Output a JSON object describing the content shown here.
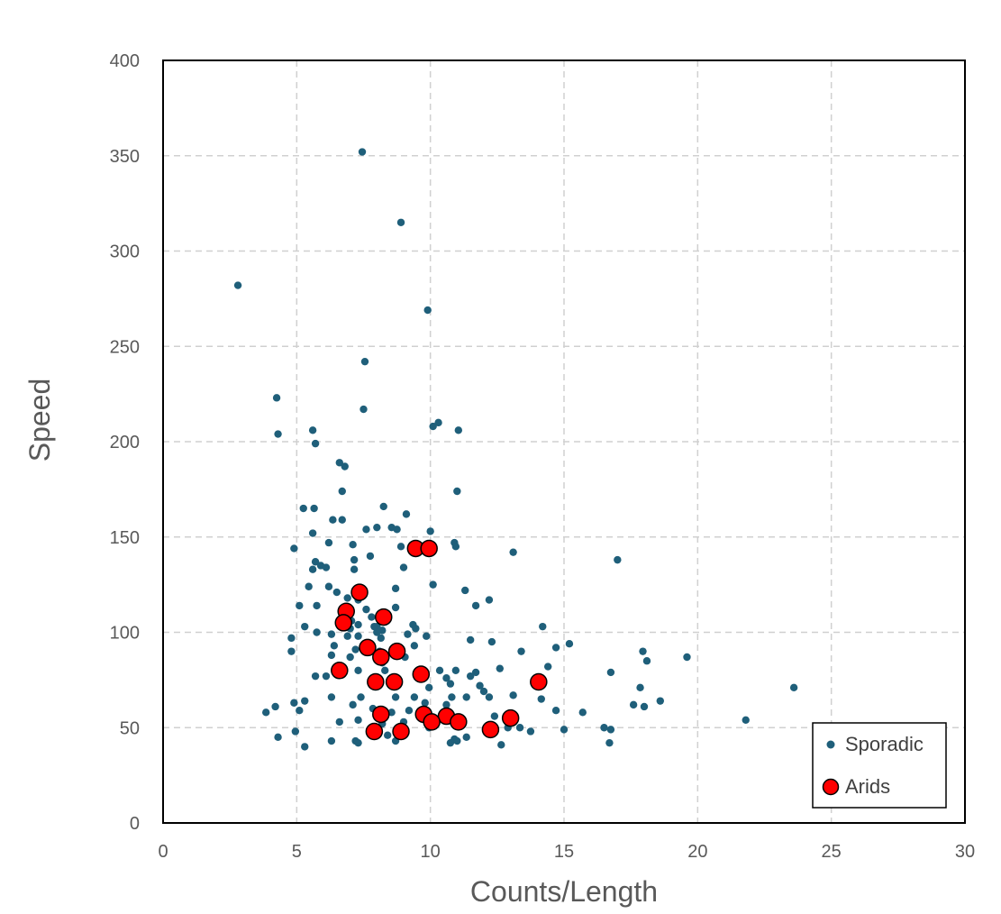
{
  "chart_data": {
    "type": "scatter",
    "xlabel": "Counts/Length",
    "ylabel": "Speed",
    "xlim": [
      0,
      30
    ],
    "ylim": [
      0,
      400
    ],
    "x_ticks": [
      0,
      5,
      10,
      15,
      20,
      25,
      30
    ],
    "y_ticks": [
      0,
      50,
      100,
      150,
      200,
      250,
      300,
      350,
      400
    ],
    "grid": true,
    "legend_position": "bottom-right",
    "series": [
      {
        "name": "Sporadic",
        "color": "#1f5f7a",
        "marker": "small-circle",
        "points": [
          [
            7.45,
            352
          ],
          [
            8.9,
            315
          ],
          [
            2.8,
            282
          ],
          [
            9.9,
            269
          ],
          [
            7.55,
            242
          ],
          [
            4.25,
            223
          ],
          [
            7.5,
            217
          ],
          [
            10.3,
            210
          ],
          [
            10.1,
            208
          ],
          [
            11.05,
            206
          ],
          [
            4.3,
            204
          ],
          [
            5.6,
            206
          ],
          [
            5.7,
            199
          ],
          [
            6.6,
            189
          ],
          [
            6.8,
            187
          ],
          [
            6.7,
            174
          ],
          [
            11.0,
            174
          ],
          [
            8.25,
            166
          ],
          [
            5.25,
            165
          ],
          [
            5.65,
            165
          ],
          [
            9.1,
            162
          ],
          [
            6.35,
            159
          ],
          [
            6.7,
            159
          ],
          [
            7.6,
            154
          ],
          [
            8.0,
            155
          ],
          [
            8.55,
            155
          ],
          [
            8.75,
            154
          ],
          [
            10.0,
            153
          ],
          [
            5.6,
            152
          ],
          [
            10.9,
            147
          ],
          [
            10.95,
            145
          ],
          [
            4.9,
            144
          ],
          [
            6.2,
            147
          ],
          [
            7.1,
            146
          ],
          [
            8.9,
            145
          ],
          [
            13.1,
            142
          ],
          [
            7.15,
            138
          ],
          [
            7.75,
            140
          ],
          [
            5.7,
            137
          ],
          [
            17.0,
            138
          ],
          [
            5.9,
            135
          ],
          [
            6.1,
            134
          ],
          [
            5.6,
            133
          ],
          [
            7.15,
            133
          ],
          [
            9.0,
            134
          ],
          [
            10.1,
            125
          ],
          [
            5.45,
            124
          ],
          [
            6.2,
            124
          ],
          [
            6.5,
            121
          ],
          [
            11.3,
            122
          ],
          [
            6.9,
            118
          ],
          [
            7.3,
            117
          ],
          [
            12.2,
            117
          ],
          [
            8.7,
            123
          ],
          [
            5.1,
            114
          ],
          [
            5.75,
            114
          ],
          [
            7.6,
            112
          ],
          [
            8.7,
            113
          ],
          [
            11.7,
            114
          ],
          [
            7.8,
            108
          ],
          [
            5.3,
            103
          ],
          [
            7.05,
            106
          ],
          [
            7.3,
            104
          ],
          [
            8.0,
            103
          ],
          [
            8.2,
            101
          ],
          [
            9.35,
            104
          ],
          [
            9.45,
            102
          ],
          [
            14.2,
            103
          ],
          [
            4.8,
            97
          ],
          [
            5.75,
            100
          ],
          [
            6.3,
            99
          ],
          [
            6.9,
            98
          ],
          [
            7.3,
            98
          ],
          [
            7.0,
            102
          ],
          [
            8.15,
            97
          ],
          [
            9.15,
            99
          ],
          [
            9.85,
            98
          ],
          [
            11.5,
            96
          ],
          [
            12.3,
            95
          ],
          [
            14.7,
            92
          ],
          [
            15.2,
            94
          ],
          [
            4.8,
            90
          ],
          [
            6.4,
            93
          ],
          [
            7.2,
            91
          ],
          [
            7.6,
            91
          ],
          [
            8.1,
            90
          ],
          [
            9.4,
            93
          ],
          [
            13.4,
            90
          ],
          [
            17.95,
            90
          ],
          [
            6.3,
            88
          ],
          [
            7.0,
            87
          ],
          [
            8.2,
            84
          ],
          [
            9.05,
            87
          ],
          [
            18.1,
            85
          ],
          [
            19.6,
            87
          ],
          [
            5.7,
            77
          ],
          [
            6.1,
            77
          ],
          [
            7.3,
            80
          ],
          [
            8.3,
            80
          ],
          [
            10.95,
            80
          ],
          [
            11.5,
            77
          ],
          [
            11.7,
            79
          ],
          [
            12.6,
            81
          ],
          [
            14.4,
            82
          ],
          [
            16.75,
            79
          ],
          [
            10.6,
            76
          ],
          [
            10.75,
            73
          ],
          [
            9.95,
            71
          ],
          [
            11.85,
            72
          ],
          [
            12.0,
            69
          ],
          [
            12.2,
            66
          ],
          [
            13.1,
            67
          ],
          [
            14.15,
            65
          ],
          [
            15.7,
            58
          ],
          [
            17.6,
            62
          ],
          [
            17.85,
            71
          ],
          [
            18.0,
            61
          ],
          [
            18.6,
            64
          ],
          [
            23.6,
            71
          ],
          [
            7.4,
            66
          ],
          [
            6.3,
            66
          ],
          [
            8.7,
            66
          ],
          [
            9.4,
            66
          ],
          [
            9.8,
            63
          ],
          [
            10.6,
            62
          ],
          [
            10.8,
            66
          ],
          [
            11.35,
            66
          ],
          [
            7.1,
            62
          ],
          [
            5.3,
            64
          ],
          [
            4.9,
            63
          ],
          [
            4.2,
            61
          ],
          [
            3.85,
            58
          ],
          [
            5.1,
            59
          ],
          [
            7.85,
            60
          ],
          [
            8.55,
            58
          ],
          [
            9.2,
            59
          ],
          [
            9.7,
            56
          ],
          [
            12.4,
            56
          ],
          [
            14.7,
            59
          ],
          [
            6.6,
            53
          ],
          [
            7.3,
            54
          ],
          [
            8.2,
            52
          ],
          [
            9.0,
            53
          ],
          [
            9.95,
            50
          ],
          [
            11.0,
            51
          ],
          [
            11.35,
            45
          ],
          [
            12.9,
            50
          ],
          [
            13.35,
            50
          ],
          [
            13.75,
            48
          ],
          [
            15.0,
            49
          ],
          [
            16.5,
            50
          ],
          [
            16.75,
            49
          ],
          [
            21.8,
            54
          ],
          [
            4.3,
            45
          ],
          [
            4.95,
            48
          ],
          [
            5.3,
            40
          ],
          [
            6.3,
            43
          ],
          [
            7.2,
            43
          ],
          [
            7.3,
            42
          ],
          [
            8.4,
            46
          ],
          [
            8.7,
            43
          ],
          [
            10.75,
            42
          ],
          [
            10.9,
            44
          ],
          [
            11.0,
            43
          ],
          [
            12.65,
            41
          ],
          [
            16.7,
            42
          ],
          [
            8.0,
            100
          ],
          [
            7.9,
            103
          ],
          [
            10.35,
            80
          ],
          [
            9.6,
            78
          ]
        ]
      },
      {
        "name": "Arids",
        "color": "#ff0000",
        "marker": "large-circle",
        "points": [
          [
            9.45,
            144
          ],
          [
            9.95,
            144
          ],
          [
            7.35,
            121
          ],
          [
            6.85,
            111
          ],
          [
            8.25,
            108
          ],
          [
            6.75,
            105
          ],
          [
            7.65,
            92
          ],
          [
            8.75,
            90
          ],
          [
            8.15,
            87
          ],
          [
            6.6,
            80
          ],
          [
            9.65,
            78
          ],
          [
            7.95,
            74
          ],
          [
            8.65,
            74
          ],
          [
            14.05,
            74
          ],
          [
            8.15,
            57
          ],
          [
            9.75,
            57
          ],
          [
            10.6,
            56
          ],
          [
            13.0,
            55
          ],
          [
            10.05,
            53
          ],
          [
            11.05,
            53
          ],
          [
            7.9,
            48
          ],
          [
            8.9,
            48
          ],
          [
            12.25,
            49
          ]
        ]
      }
    ]
  }
}
